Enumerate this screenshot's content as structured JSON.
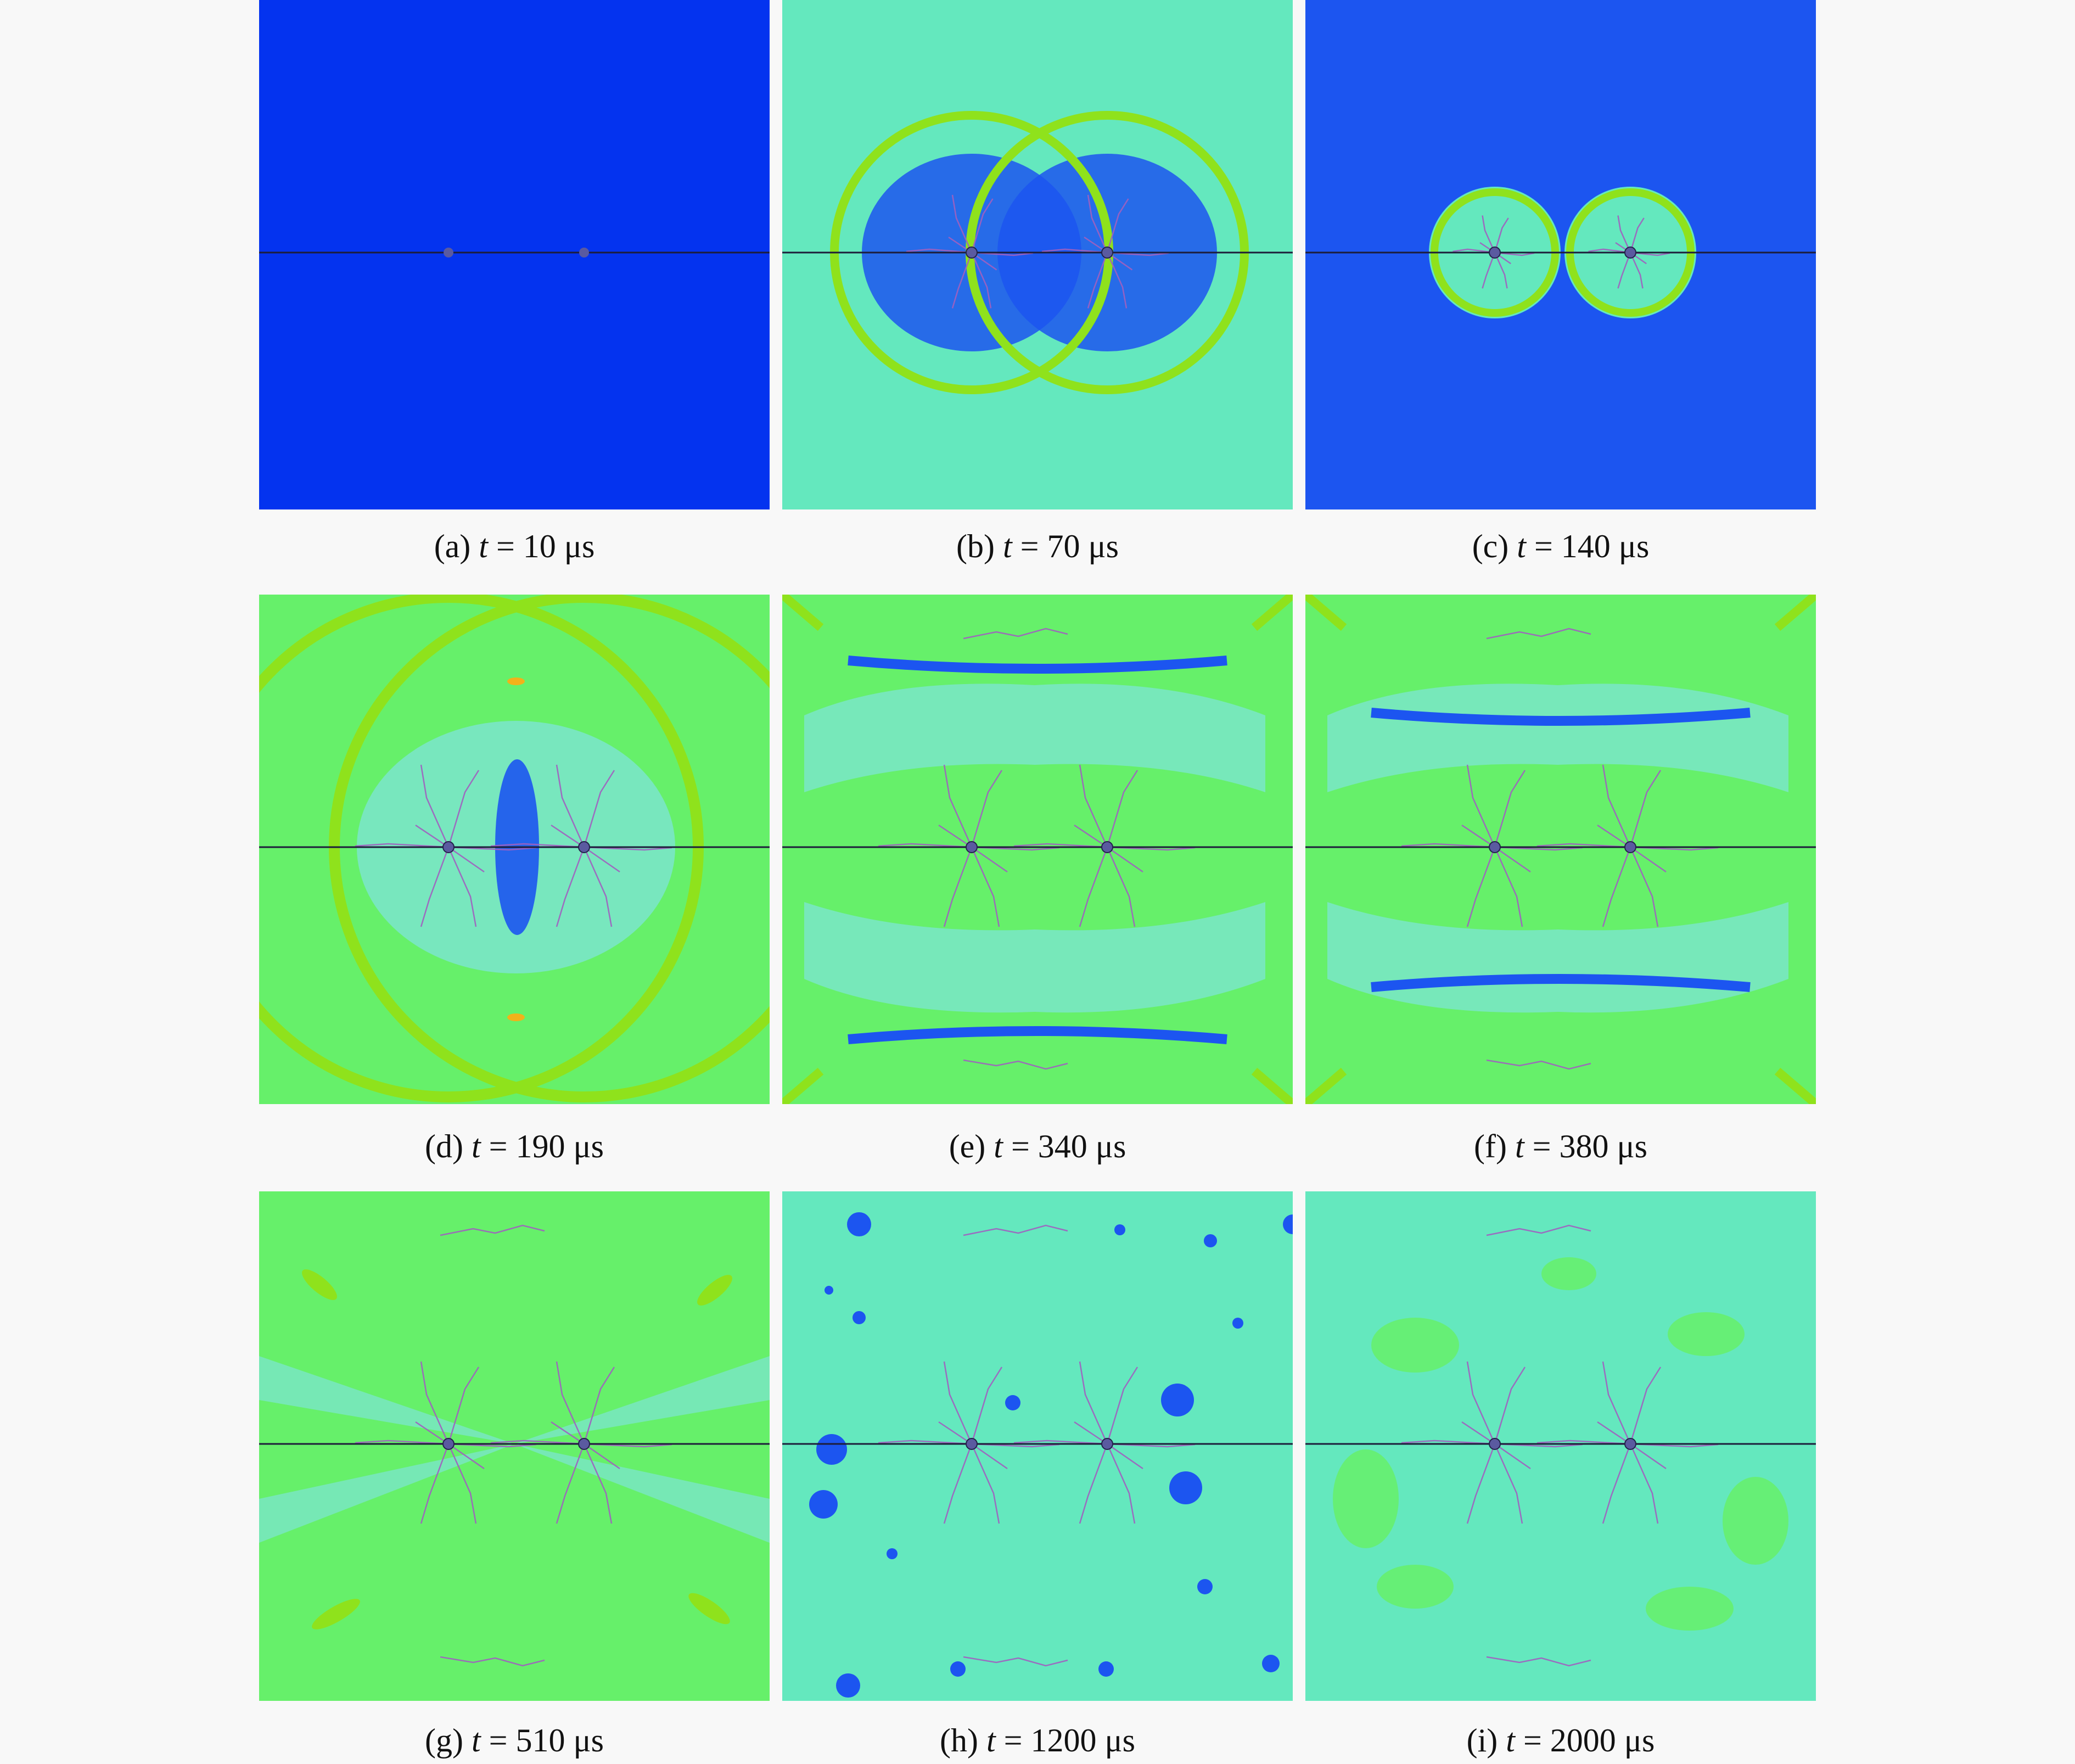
{
  "panels": [
    {
      "letter": "(a)",
      "var": "t",
      "value": "= 10 μs",
      "bg": "#0433ef",
      "wave": "none"
    },
    {
      "letter": "(b)",
      "var": "t",
      "value": "= 70 μs",
      "bg": "#64e8be",
      "wave": "early"
    },
    {
      "letter": "(c)",
      "var": "t",
      "value": "= 140 μs",
      "bg": "#1c55f0",
      "wave": "bubbles"
    },
    {
      "letter": "(d)",
      "var": "t",
      "value": "= 190 μs",
      "bg": "#66f06a",
      "wave": "rings"
    },
    {
      "letter": "(e)",
      "var": "t",
      "value": "= 340 μs",
      "bg": "#66f06a",
      "wave": "bands"
    },
    {
      "letter": "(f)",
      "var": "t",
      "value": "= 380 μs",
      "bg": "#66f06a",
      "wave": "bands2"
    },
    {
      "letter": "(g)",
      "var": "t",
      "value": "= 510 μs",
      "bg": "#66f06a",
      "wave": "rays"
    },
    {
      "letter": "(h)",
      "var": "t",
      "value": "= 1200 μs",
      "bg": "#64e8be",
      "wave": "spots"
    },
    {
      "letter": "(i)",
      "var": "t",
      "value": "= 2000 μs",
      "bg": "#64e8be",
      "wave": "patches"
    }
  ],
  "colors": {
    "deep_blue": "#0433ef",
    "blue": "#1c55f0",
    "cyan": "#64e8be",
    "light_cyan": "#7ae6c8",
    "green": "#66f06a",
    "yellow_green": "#8fe21c",
    "orange": "#f2b21a",
    "crack": "#a060c0",
    "axis_line": "#1d1d3a",
    "borehole": "#5a5aa0"
  }
}
